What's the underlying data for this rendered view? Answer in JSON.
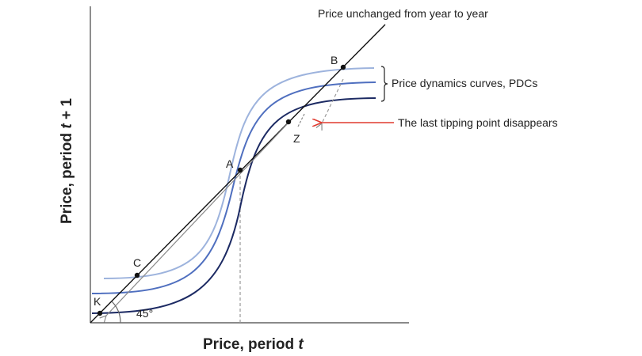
{
  "axes": {
    "x_label": "Price, period",
    "x_label_var": "t",
    "y_label": "Price, period",
    "y_label_var": "t",
    "y_label_suffix": " + 1"
  },
  "labels": {
    "line_45": "Price unchanged from year to year",
    "pdc_bracket": "Price dynamics curves, PDCs",
    "tipping": "The last tipping point disappears",
    "angle": "45°"
  },
  "points": {
    "A": "A",
    "B": "B",
    "C": "C",
    "K": "K",
    "Z": "Z"
  },
  "colors": {
    "axis": "#444444",
    "line45": "#111111",
    "pdc_light": "#9db3dd",
    "pdc_mid": "#4f6fbf",
    "pdc_dark": "#1c2a63",
    "arrow_red": "#e03a2f",
    "dashed": "#9a9a9a"
  }
}
